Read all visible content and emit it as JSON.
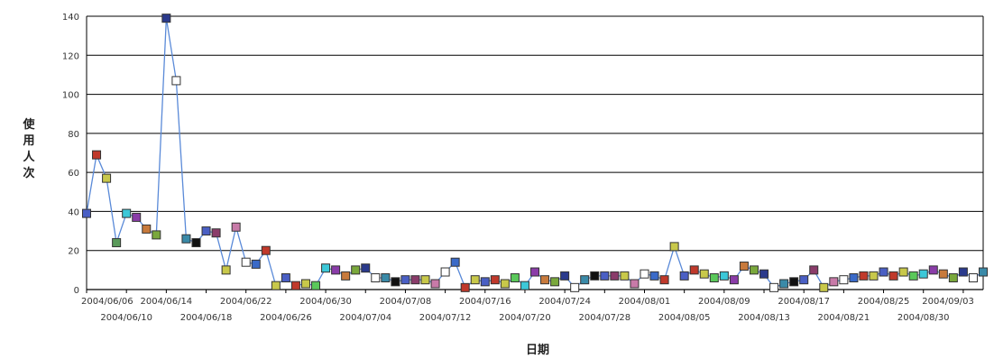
{
  "chart_data": {
    "type": "line",
    "ylabel": "使用人次",
    "xlabel": "日期",
    "ylim": [
      0,
      140
    ],
    "yticks": [
      "0",
      "20",
      "40",
      "60",
      "80",
      "100",
      "120",
      "140"
    ],
    "grid": true,
    "legend": "none",
    "xticks": [
      {
        "label": "2004/06/06",
        "i": 0,
        "row": 1
      },
      {
        "label": "2004/06/10",
        "i": 4,
        "row": 2
      },
      {
        "label": "2004/06/14",
        "i": 8,
        "row": 1
      },
      {
        "label": "2004/06/18",
        "i": 12,
        "row": 2
      },
      {
        "label": "2004/06/22",
        "i": 16,
        "row": 1
      },
      {
        "label": "2004/06/26",
        "i": 20,
        "row": 2
      },
      {
        "label": "2004/06/30",
        "i": 24,
        "row": 1
      },
      {
        "label": "2004/07/04",
        "i": 28,
        "row": 2
      },
      {
        "label": "2004/07/08",
        "i": 32,
        "row": 1
      },
      {
        "label": "2004/07/12",
        "i": 36,
        "row": 2
      },
      {
        "label": "2004/07/16",
        "i": 40,
        "row": 1
      },
      {
        "label": "2004/07/20",
        "i": 44,
        "row": 2
      },
      {
        "label": "2004/07/24",
        "i": 48,
        "row": 1
      },
      {
        "label": "2004/07/28",
        "i": 52,
        "row": 2
      },
      {
        "label": "2004/08/01",
        "i": 56,
        "row": 1
      },
      {
        "label": "2004/08/05",
        "i": 60,
        "row": 2
      },
      {
        "label": "2004/08/09",
        "i": 64,
        "row": 1
      },
      {
        "label": "2004/08/13",
        "i": 68,
        "row": 2
      },
      {
        "label": "2004/08/17",
        "i": 72,
        "row": 1
      },
      {
        "label": "2004/08/21",
        "i": 76,
        "row": 2
      },
      {
        "label": "2004/08/25",
        "i": 80,
        "row": 1
      },
      {
        "label": "2004/08/30",
        "i": 84,
        "row": 2
      },
      {
        "label": "2004/09/03",
        "i": 88,
        "row": 1
      }
    ],
    "values": [
      39,
      69,
      57,
      24,
      39,
      37,
      31,
      28,
      139,
      107,
      26,
      24,
      30,
      29,
      10,
      32,
      14,
      13,
      20,
      2,
      6,
      2,
      3,
      2,
      11,
      10,
      7,
      10,
      11,
      6,
      6,
      4,
      5,
      5,
      5,
      3,
      9,
      14,
      1,
      5,
      4,
      5,
      3,
      6,
      2,
      9,
      5,
      4,
      7,
      1,
      5,
      7,
      7,
      7,
      7,
      3,
      8,
      7,
      5,
      22,
      7,
      10,
      8,
      6,
      7,
      5,
      12,
      10,
      8,
      1,
      3,
      4,
      5,
      10,
      1,
      4,
      5,
      6,
      7,
      7,
      9,
      7,
      9,
      7,
      8,
      10,
      8,
      6,
      9,
      6,
      9
    ],
    "marker_colors": [
      "#4a5fc4",
      "#c0392b",
      "#c8c84a",
      "#5a9a5a",
      "#3cc8d8",
      "#8a3ca8",
      "#c87a3c",
      "#7aa83c",
      "#2a3a8c",
      "#ffffff",
      "#3a8aa8",
      "#111111",
      "#4a5fc4",
      "#8a3c6a",
      "#c8c84a",
      "#c87aa8",
      "#ffffff",
      "#3a6ac8",
      "#c0392b",
      "#c8c84a",
      "#4a5fc4",
      "#c0392b",
      "#c8c84a",
      "#5ac85a",
      "#3cc8d8",
      "#8a3ca8",
      "#c87a3c",
      "#7aa83c",
      "#2a3a8c",
      "#ffffff",
      "#3a8aa8",
      "#111111",
      "#4a5fc4",
      "#8a3c6a",
      "#c8c84a",
      "#c87aa8",
      "#ffffff",
      "#3a6ac8",
      "#c0392b",
      "#c8c84a",
      "#4a5fc4",
      "#c0392b",
      "#c8c84a",
      "#5ac85a",
      "#3cc8d8",
      "#8a3ca8",
      "#c87a3c",
      "#7aa83c",
      "#2a3a8c",
      "#ffffff",
      "#3a8aa8",
      "#111111",
      "#4a5fc4",
      "#8a3c6a",
      "#c8c84a",
      "#c87aa8",
      "#ffffff",
      "#3a6ac8",
      "#c0392b",
      "#c8c84a",
      "#4a5fc4",
      "#c0392b",
      "#c8c84a",
      "#5ac85a",
      "#3cc8d8",
      "#8a3ca8",
      "#c87a3c",
      "#7aa83c",
      "#2a3a8c",
      "#ffffff",
      "#3a8aa8",
      "#111111",
      "#4a5fc4",
      "#8a3c6a",
      "#c8c84a",
      "#c87aa8",
      "#ffffff",
      "#3a6ac8",
      "#c0392b",
      "#c8c84a",
      "#4a5fc4",
      "#c0392b",
      "#c8c84a",
      "#5ac85a",
      "#3cc8d8",
      "#8a3ca8",
      "#c87a3c",
      "#7aa83c",
      "#2a3a8c",
      "#ffffff",
      "#3a8aa8"
    ],
    "line_color": "#5a8ad8"
  }
}
